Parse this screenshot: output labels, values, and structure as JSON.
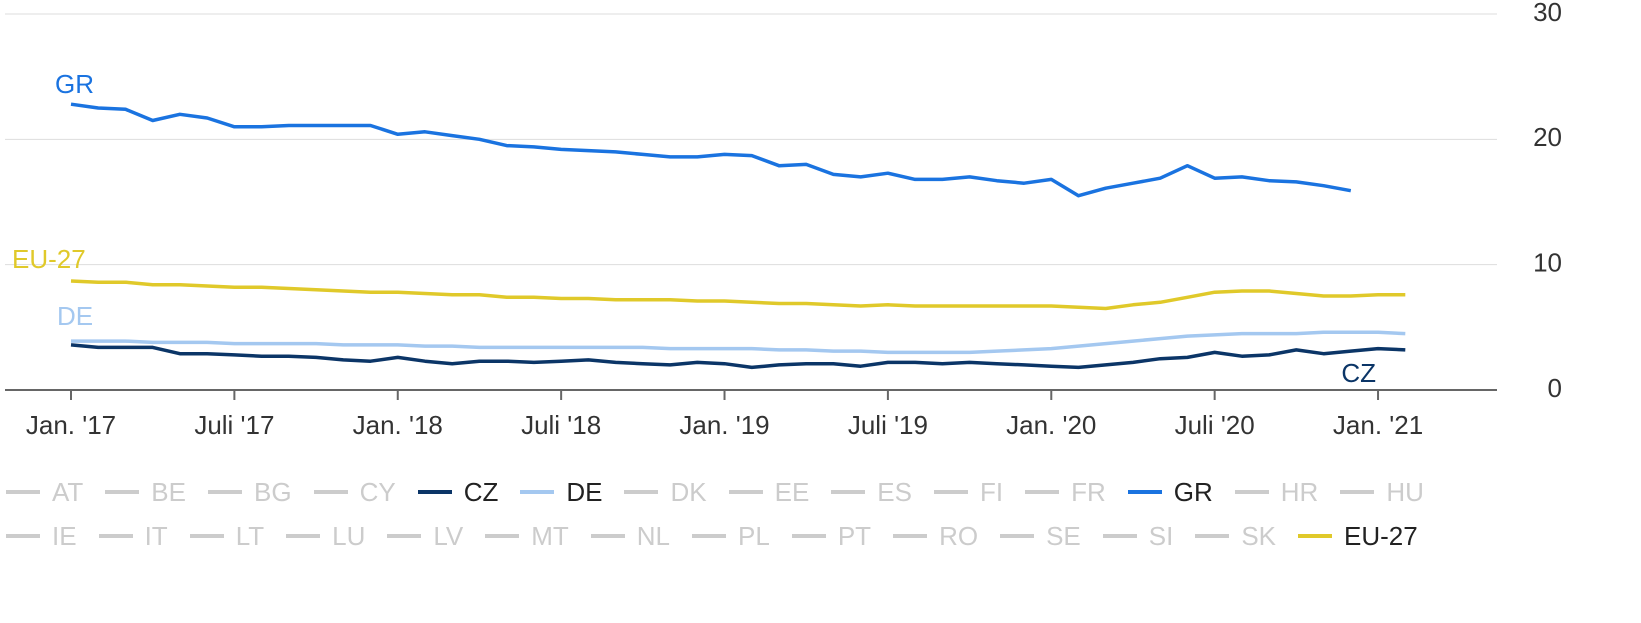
{
  "chart_data": {
    "type": "line",
    "categories": [
      "Jan. '17",
      null,
      null,
      null,
      null,
      null,
      "Juli '17",
      null,
      null,
      null,
      null,
      null,
      "Jan. '18",
      null,
      null,
      null,
      null,
      null,
      "Juli '18",
      null,
      null,
      null,
      null,
      null,
      "Jan. '19",
      null,
      null,
      null,
      null,
      null,
      "Juli '19",
      null,
      null,
      null,
      null,
      null,
      "Jan. '20",
      null,
      null,
      null,
      null,
      null,
      "Juli '20",
      null,
      null,
      null,
      null,
      null,
      "Jan. '21",
      null
    ],
    "series": [
      {
        "name": "GR",
        "color": "#1a73e0",
        "values": [
          22.8,
          22.5,
          22.4,
          21.5,
          22.0,
          21.7,
          21.0,
          21.0,
          21.1,
          21.1,
          21.1,
          21.1,
          20.4,
          20.6,
          20.3,
          20.0,
          19.5,
          19.4,
          19.2,
          19.1,
          19.0,
          18.8,
          18.6,
          18.6,
          18.8,
          18.7,
          17.9,
          18.0,
          17.2,
          17.0,
          17.3,
          16.8,
          16.8,
          17.0,
          16.7,
          16.5,
          16.8,
          15.5,
          16.1,
          16.5,
          16.9,
          17.9,
          16.9,
          17.0,
          16.7,
          16.6,
          16.3,
          15.9,
          null,
          null
        ]
      },
      {
        "name": "EU-27",
        "color": "#e0c92a",
        "values": [
          8.7,
          8.6,
          8.6,
          8.4,
          8.4,
          8.3,
          8.2,
          8.2,
          8.1,
          8.0,
          7.9,
          7.8,
          7.8,
          7.7,
          7.6,
          7.6,
          7.4,
          7.4,
          7.3,
          7.3,
          7.2,
          7.2,
          7.2,
          7.1,
          7.1,
          7.0,
          6.9,
          6.9,
          6.8,
          6.7,
          6.8,
          6.7,
          6.7,
          6.7,
          6.7,
          6.7,
          6.7,
          6.6,
          6.5,
          6.8,
          7.0,
          7.4,
          7.8,
          7.9,
          7.9,
          7.7,
          7.5,
          7.5,
          7.6,
          7.6
        ]
      },
      {
        "name": "DE",
        "color": "#a4c8f0",
        "values": [
          3.9,
          3.9,
          3.9,
          3.8,
          3.8,
          3.8,
          3.7,
          3.7,
          3.7,
          3.7,
          3.6,
          3.6,
          3.6,
          3.5,
          3.5,
          3.4,
          3.4,
          3.4,
          3.4,
          3.4,
          3.4,
          3.4,
          3.3,
          3.3,
          3.3,
          3.3,
          3.2,
          3.2,
          3.1,
          3.1,
          3.0,
          3.0,
          3.0,
          3.0,
          3.1,
          3.2,
          3.3,
          3.5,
          3.7,
          3.9,
          4.1,
          4.3,
          4.4,
          4.5,
          4.5,
          4.5,
          4.6,
          4.6,
          4.6,
          4.5
        ]
      },
      {
        "name": "CZ",
        "color": "#0b3567",
        "values": [
          3.6,
          3.4,
          3.4,
          3.4,
          2.9,
          2.9,
          2.8,
          2.7,
          2.7,
          2.6,
          2.4,
          2.3,
          2.6,
          2.3,
          2.1,
          2.3,
          2.3,
          2.2,
          2.3,
          2.4,
          2.2,
          2.1,
          2.0,
          2.2,
          2.1,
          1.8,
          2.0,
          2.1,
          2.1,
          1.9,
          2.2,
          2.2,
          2.1,
          2.2,
          2.1,
          2.0,
          1.9,
          1.8,
          2.0,
          2.2,
          2.5,
          2.6,
          3.0,
          2.7,
          2.8,
          3.2,
          2.9,
          3.1,
          3.3,
          3.2
        ]
      }
    ],
    "ylim": [
      0,
      30
    ],
    "yticks": [
      0,
      10,
      20,
      30
    ],
    "grid": true,
    "legend": [
      "AT",
      "BE",
      "BG",
      "CY",
      "CZ",
      "DE",
      "DK",
      "EE",
      "ES",
      "FI",
      "FR",
      "GR",
      "HR",
      "HU",
      "IE",
      "IT",
      "LT",
      "LU",
      "LV",
      "MT",
      "NL",
      "PL",
      "PT",
      "RO",
      "SE",
      "SI",
      "SK",
      "EU-27"
    ],
    "inactive_color": "#cccccc"
  }
}
